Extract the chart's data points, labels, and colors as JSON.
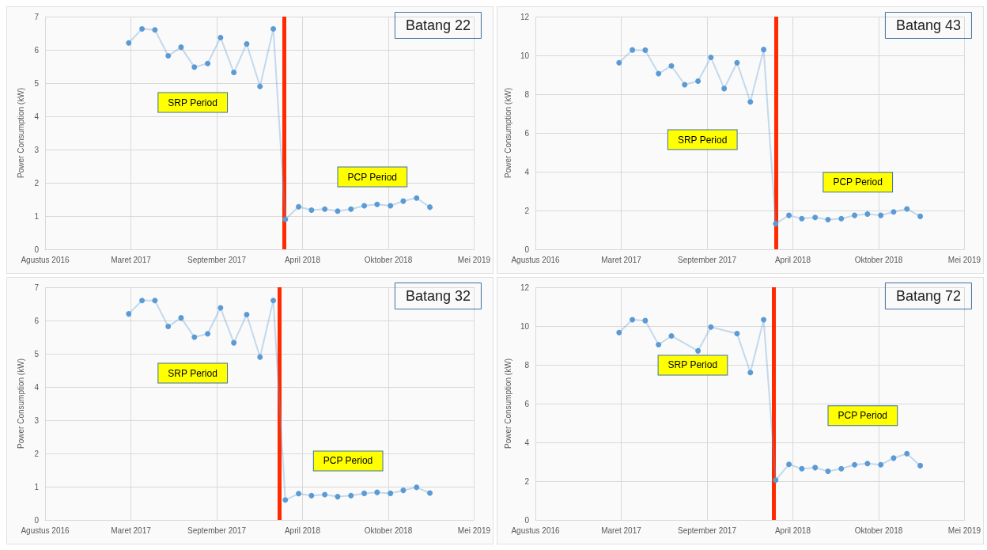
{
  "chart_data": [
    {
      "type": "line",
      "title": "Batang 22",
      "ylabel": "Power Consumption (kW)",
      "x": [
        "2017-03",
        "2017-04",
        "2017-05",
        "2017-06",
        "2017-07",
        "2017-08",
        "2017-09",
        "2017-10",
        "2017-11",
        "2017-12",
        "2018-01",
        "2018-02",
        "2018-03",
        "2018-04",
        "2018-05",
        "2018-06",
        "2018-07",
        "2018-08",
        "2018-09",
        "2018-10",
        "2018-11",
        "2018-12",
        "2019-01",
        "2019-02"
      ],
      "series": [
        {
          "color": "#5b9bd5",
          "values": [
            6.21,
            6.63,
            6.6,
            5.82,
            6.08,
            5.48,
            5.59,
            6.37,
            5.32,
            6.18,
            4.9,
            6.63,
            0.9,
            1.28,
            1.18,
            1.21,
            1.15,
            1.21,
            1.31,
            1.35,
            1.31,
            1.45,
            1.54,
            1.27
          ]
        }
      ],
      "xlim": [
        "2016-08-18",
        "2019-05-15"
      ],
      "xticks": [
        {
          "value": "2016-08-18",
          "label": "Agustus 2016"
        },
        {
          "value": "2017-03-06",
          "label": "Maret 2017"
        },
        {
          "value": "2017-09-22",
          "label": "September 2017"
        },
        {
          "value": "2018-04-10",
          "label": "April 2018"
        },
        {
          "value": "2018-10-27",
          "label": "Oktober 2018"
        },
        {
          "value": "2019-05-15",
          "label": "Mei 2019"
        }
      ],
      "ylim": [
        0,
        7
      ],
      "yticks": [
        0,
        1,
        2,
        3,
        4,
        5,
        6,
        7
      ],
      "ref_lines": [
        {
          "axis": "x",
          "value": "2018-02-26",
          "color": "#ff2a00"
        }
      ],
      "annotations": [
        "SRP Period",
        "PCP Period"
      ],
      "grid": true,
      "marker": "circle",
      "line_style": "solid"
    },
    {
      "type": "line",
      "title": "Batang 43",
      "ylabel": "Power Consumption (kW)",
      "x": [
        "2017-03",
        "2017-04",
        "2017-05",
        "2017-06",
        "2017-07",
        "2017-08",
        "2017-09",
        "2017-10",
        "2017-11",
        "2017-12",
        "2018-01",
        "2018-02",
        "2018-03",
        "2018-04",
        "2018-05",
        "2018-06",
        "2018-07",
        "2018-08",
        "2018-09",
        "2018-10",
        "2018-11",
        "2018-12",
        "2019-01",
        "2019-02"
      ],
      "series": [
        {
          "color": "#5b9bd5",
          "values": [
            9.62,
            10.28,
            10.27,
            9.06,
            9.46,
            8.49,
            8.67,
            9.9,
            8.29,
            9.62,
            7.6,
            10.3,
            1.32,
            1.75,
            1.58,
            1.64,
            1.53,
            1.58,
            1.75,
            1.82,
            1.75,
            1.93,
            2.08,
            1.7
          ]
        }
      ],
      "xlim": [
        "2016-08-18",
        "2019-05-15"
      ],
      "xticks": [
        {
          "value": "2016-08-18",
          "label": "Agustus 2016"
        },
        {
          "value": "2017-03-06",
          "label": "Maret 2017"
        },
        {
          "value": "2017-09-22",
          "label": "September 2017"
        },
        {
          "value": "2018-04-10",
          "label": "April 2018"
        },
        {
          "value": "2018-10-27",
          "label": "Oktober 2018"
        },
        {
          "value": "2019-05-15",
          "label": "Mei 2019"
        }
      ],
      "ylim": [
        0,
        12
      ],
      "yticks": [
        0,
        2,
        4,
        6,
        8,
        10,
        12
      ],
      "ref_lines": [
        {
          "axis": "x",
          "value": "2018-03-02",
          "color": "#ff2a00"
        }
      ],
      "annotations": [
        "SRP Period",
        "PCP Period"
      ],
      "grid": true,
      "marker": "circle",
      "line_style": "solid"
    },
    {
      "type": "line",
      "title": "Batang 32",
      "ylabel": "Power Consumption (kW)",
      "x": [
        "2017-03",
        "2017-04",
        "2017-05",
        "2017-06",
        "2017-07",
        "2017-08",
        "2017-09",
        "2017-10",
        "2017-11",
        "2017-12",
        "2018-01",
        "2018-02",
        "2018-03",
        "2018-04",
        "2018-05",
        "2018-06",
        "2018-07",
        "2018-08",
        "2018-09",
        "2018-10",
        "2018-11",
        "2018-12",
        "2019-01",
        "2019-02"
      ],
      "series": [
        {
          "color": "#5b9bd5",
          "values": [
            6.2,
            6.6,
            6.6,
            5.82,
            6.08,
            5.5,
            5.6,
            6.38,
            5.33,
            6.18,
            4.9,
            6.6,
            0.6,
            0.79,
            0.73,
            0.76,
            0.7,
            0.73,
            0.8,
            0.83,
            0.8,
            0.89,
            0.98,
            0.81
          ]
        }
      ],
      "xlim": [
        "2016-08-18",
        "2019-05-15"
      ],
      "xticks": [
        {
          "value": "2016-08-18",
          "label": "Agustus 2016"
        },
        {
          "value": "2017-03-06",
          "label": "Maret 2017"
        },
        {
          "value": "2017-09-22",
          "label": "September 2017"
        },
        {
          "value": "2018-04-10",
          "label": "April 2018"
        },
        {
          "value": "2018-10-27",
          "label": "Oktober 2018"
        },
        {
          "value": "2019-05-15",
          "label": "Mei 2019"
        }
      ],
      "ylim": [
        0,
        7
      ],
      "yticks": [
        0,
        1,
        2,
        3,
        4,
        5,
        6,
        7
      ],
      "ref_lines": [
        {
          "axis": "x",
          "value": "2018-02-16",
          "color": "#ff2a00"
        }
      ],
      "annotations": [
        "SRP Period",
        "PCP Period"
      ],
      "grid": true,
      "marker": "circle",
      "line_style": "solid"
    },
    {
      "type": "line",
      "title": "Batang 72",
      "ylabel": "Power Consumption (kW)",
      "x": [
        "2017-03",
        "2017-04",
        "2017-05",
        "2017-06",
        "2017-07",
        "2017-08",
        "2017-09",
        "2017-10",
        "2017-11",
        "2017-12",
        "2018-01",
        "2018-02",
        "2018-03",
        "2018-04",
        "2018-05",
        "2018-06",
        "2018-07",
        "2018-08",
        "2018-09",
        "2018-10",
        "2018-11",
        "2018-12",
        "2019-01",
        "2019-02"
      ],
      "series": [
        {
          "color": "#5b9bd5",
          "values": [
            9.66,
            10.33,
            10.28,
            9.04,
            9.49,
            null,
            8.72,
            9.95,
            null,
            9.61,
            7.6,
            10.33,
            2.05,
            2.87,
            2.64,
            2.7,
            2.51,
            2.64,
            2.85,
            2.91,
            2.85,
            3.19,
            3.42,
            2.8
          ]
        }
      ],
      "xlim": [
        "2016-08-18",
        "2019-05-15"
      ],
      "xticks": [
        {
          "value": "2016-08-18",
          "label": "Agustus 2016"
        },
        {
          "value": "2017-03-06",
          "label": "Maret 2017"
        },
        {
          "value": "2017-09-22",
          "label": "September 2017"
        },
        {
          "value": "2018-04-10",
          "label": "April 2018"
        },
        {
          "value": "2018-10-27",
          "label": "Oktober 2018"
        },
        {
          "value": "2019-05-15",
          "label": "Mei 2019"
        }
      ],
      "ylim": [
        0,
        12
      ],
      "yticks": [
        0,
        2,
        4,
        6,
        8,
        10,
        12
      ],
      "ref_lines": [
        {
          "axis": "x",
          "value": "2018-02-25",
          "color": "#ff2a00"
        }
      ],
      "annotations": [
        "SRP Period",
        "PCP Period"
      ],
      "grid": true,
      "marker": "circle",
      "line_style": "solid"
    }
  ]
}
